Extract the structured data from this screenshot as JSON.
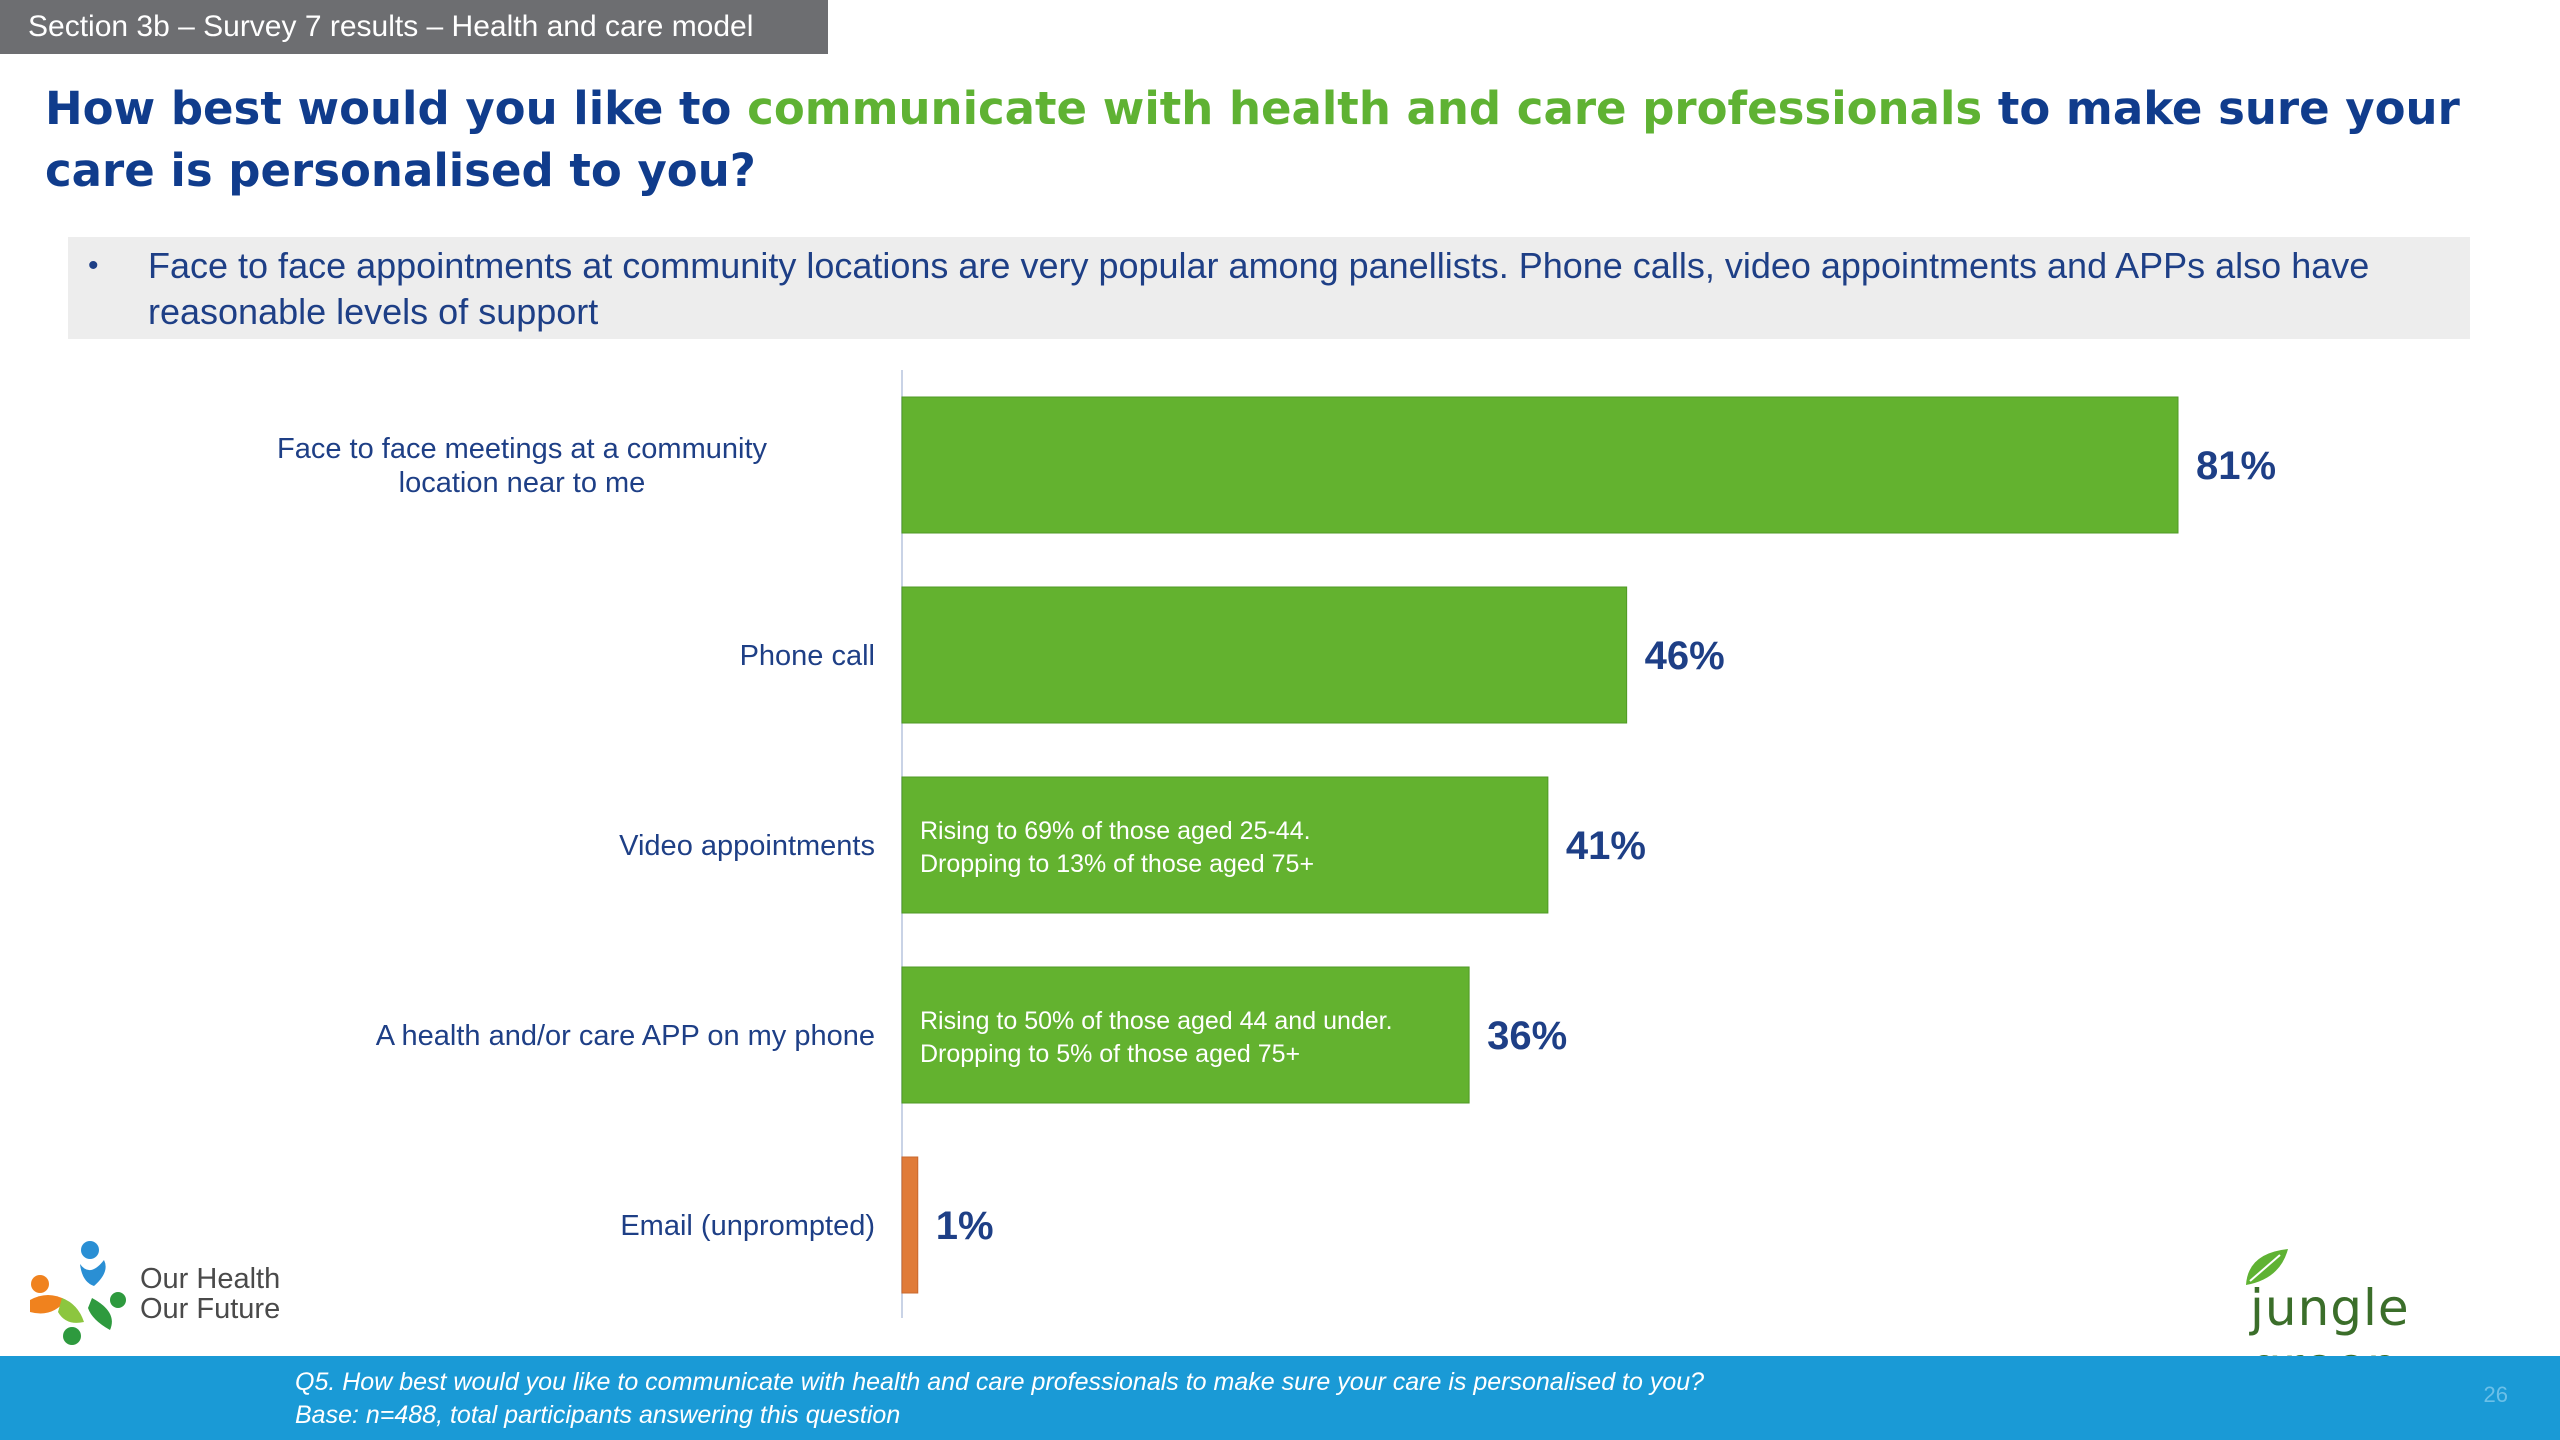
{
  "header": {
    "section_tag": "Section 3b – Survey 7 results – Health and care model",
    "title_part1": "How best would you like to ",
    "title_highlight": "communicate with health and care professionals",
    "title_part2": " to make sure your care is personalised to you?"
  },
  "summary": {
    "bullet": "•",
    "text": "Face to face appointments at community locations are very popular among panellists. Phone calls, video appointments and APPs also have reasonable levels of support"
  },
  "chart_data": {
    "type": "bar",
    "orientation": "horizontal",
    "categories": [
      "Face to face meetings at a community location near to me",
      "Phone call",
      "Video appointments",
      "A health and/or care APP on my phone",
      "Email (unprompted)"
    ],
    "values": [
      81,
      46,
      41,
      36,
      1
    ],
    "value_labels": [
      "81%",
      "46%",
      "41%",
      "36%",
      "1%"
    ],
    "bar_colors": [
      "#63b22f",
      "#63b22f",
      "#63b22f",
      "#63b22f",
      "#e07b39"
    ],
    "annotations": [
      "",
      "",
      "Rising to 69% of those aged 25-44. Dropping to 13% of those aged 75+",
      "Rising to 50% of those aged 44 and under. Dropping to 5% of those aged 75+",
      ""
    ],
    "xlim": [
      0,
      100
    ],
    "grid": false,
    "legend": "none"
  },
  "logos": {
    "left_line1": "Our Health",
    "left_line2": "Our Future",
    "right_text": "jungle green"
  },
  "footer": {
    "question": "Q5. How best would you like to communicate with health and care professionals to make sure your care is personalised to you?",
    "base": "Base: n=488, total participants answering this question",
    "page_number": "26"
  },
  "colors": {
    "navy": "#103c8c",
    "green": "#63b22f",
    "orange": "#e07b39",
    "footer_blue": "#1a9ad6",
    "tag_grey": "#6d6e71"
  }
}
